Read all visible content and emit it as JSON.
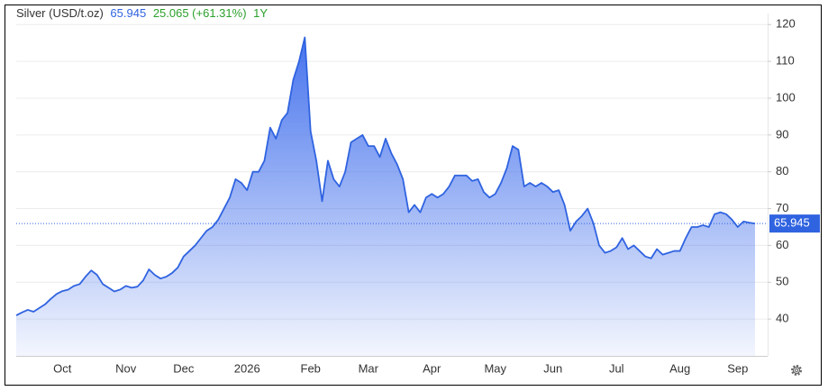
{
  "chart_data": {
    "type": "area",
    "title": "Silver (USD/t.oz)",
    "change": "25.065 (+61.31%)",
    "period": "1Y",
    "color": "#2f63e0",
    "categories": [
      null,
      null,
      null,
      null,
      null,
      null,
      null,
      null,
      "Oct",
      null,
      null,
      null,
      null,
      null,
      null,
      null,
      null,
      null,
      null,
      "Nov",
      null,
      null,
      null,
      null,
      null,
      null,
      null,
      null,
      null,
      "Dec",
      null,
      null,
      null,
      null,
      null,
      null,
      null,
      null,
      null,
      null,
      "2026",
      null,
      null,
      null,
      null,
      null,
      null,
      null,
      null,
      null,
      null,
      "Feb",
      null,
      null,
      null,
      null,
      null,
      null,
      null,
      null,
      null,
      "Mar",
      null,
      null,
      null,
      null,
      null,
      null,
      null,
      null,
      null,
      null,
      "Apr",
      null,
      null,
      null,
      null,
      null,
      null,
      null,
      null,
      null,
      null,
      "May",
      null,
      null,
      null,
      null,
      null,
      null,
      null,
      null,
      null,
      "Jun",
      null,
      null,
      null,
      null,
      null,
      null,
      null,
      null,
      null,
      null,
      "Jul",
      null,
      null,
      null,
      null,
      null,
      null,
      null,
      null,
      null,
      null,
      "Aug",
      null,
      null,
      null,
      null,
      null,
      null,
      null,
      null,
      null,
      "Sep",
      null,
      null,
      null
    ],
    "values": [
      41,
      41.8,
      42.5,
      42,
      43,
      44,
      45.5,
      46.8,
      47.6,
      48,
      49,
      49.5,
      51.5,
      53.2,
      52,
      49.5,
      48.5,
      47.5,
      48,
      49,
      48.5,
      48.8,
      50.5,
      53.5,
      52,
      51,
      51.5,
      52.5,
      54,
      57,
      58.5,
      60,
      62,
      64,
      65,
      67,
      70,
      73,
      78,
      77,
      75,
      80,
      80,
      83,
      92,
      89,
      94,
      96,
      105,
      110,
      116.5,
      91,
      83,
      72,
      83,
      78,
      76,
      80,
      88,
      89,
      90,
      87,
      87,
      84,
      89,
      85,
      82,
      78,
      69,
      71,
      69,
      73,
      74,
      73,
      74,
      76,
      79,
      79,
      79,
      77.5,
      78,
      74.5,
      73,
      74,
      77,
      81,
      87,
      86,
      76,
      77,
      76,
      77,
      76,
      74.5,
      75,
      71,
      64,
      66.5,
      68,
      70,
      66,
      60,
      58,
      58.5,
      59.5,
      62,
      59,
      60,
      58.5,
      57,
      56.5,
      59,
      57.5,
      58,
      58.5,
      58.5,
      62,
      65,
      65,
      65.5,
      65,
      68.5,
      69,
      68.5,
      67,
      65,
      66.5,
      66.2,
      65.945
    ],
    "ylim": [
      30,
      123
    ],
    "yticks": [
      40,
      50,
      60,
      70,
      80,
      90,
      100,
      110,
      120
    ],
    "grid": true
  }
}
